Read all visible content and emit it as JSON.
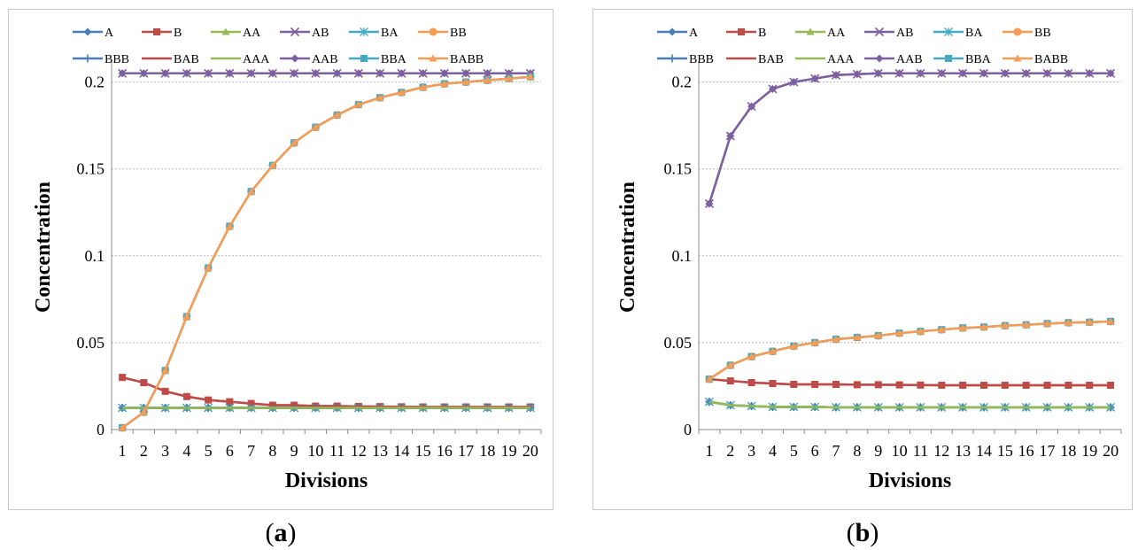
{
  "chart_data": [
    {
      "panel": "a",
      "type": "line",
      "caption": "a",
      "xlabel": "Divisions",
      "ylabel": "Concentration",
      "x": [
        1,
        2,
        3,
        4,
        5,
        6,
        7,
        8,
        9,
        10,
        11,
        12,
        13,
        14,
        15,
        16,
        17,
        18,
        19,
        20
      ],
      "ylim": [
        0,
        0.21
      ],
      "yticks": [
        0,
        0.05,
        0.1,
        0.15,
        0.2
      ],
      "ytick_labels": [
        "0",
        "0.05",
        "0.1",
        "0.15",
        "0.2"
      ],
      "grid": "horizontal dashed",
      "legend_position": "top",
      "series": [
        {
          "name": "A",
          "color": "#4a7ebb",
          "marker": "diamond",
          "values": [
            0.0125,
            0.0125,
            0.0125,
            0.0125,
            0.0125,
            0.0125,
            0.0125,
            0.0125,
            0.0125,
            0.0125,
            0.0125,
            0.0125,
            0.0125,
            0.0125,
            0.0125,
            0.0125,
            0.0125,
            0.0125,
            0.0125,
            0.0125
          ]
        },
        {
          "name": "B",
          "color": "#be4b48",
          "marker": "square",
          "values": [
            0.03,
            0.027,
            0.022,
            0.019,
            0.017,
            0.016,
            0.015,
            0.014,
            0.014,
            0.0135,
            0.0135,
            0.0133,
            0.0132,
            0.0131,
            0.013,
            0.013,
            0.013,
            0.013,
            0.013,
            0.013
          ]
        },
        {
          "name": "AA",
          "color": "#98b954",
          "marker": "triangle",
          "values": [
            0.0125,
            0.0125,
            0.0125,
            0.0125,
            0.0125,
            0.0125,
            0.0125,
            0.0125,
            0.0125,
            0.0125,
            0.0125,
            0.0125,
            0.0125,
            0.0125,
            0.0125,
            0.0125,
            0.0125,
            0.0125,
            0.0125,
            0.0125
          ]
        },
        {
          "name": "AB",
          "color": "#7d60a0",
          "marker": "x",
          "values": [
            0.205,
            0.205,
            0.205,
            0.205,
            0.205,
            0.205,
            0.205,
            0.205,
            0.205,
            0.205,
            0.205,
            0.205,
            0.205,
            0.205,
            0.205,
            0.205,
            0.205,
            0.205,
            0.205,
            0.205
          ]
        },
        {
          "name": "BA",
          "color": "#46aac5",
          "marker": "star",
          "values": [
            0.0125,
            0.0125,
            0.0125,
            0.0125,
            0.0125,
            0.0125,
            0.0125,
            0.0125,
            0.0125,
            0.0125,
            0.0125,
            0.0125,
            0.0125,
            0.0125,
            0.0125,
            0.0125,
            0.0125,
            0.0125,
            0.0125,
            0.0125
          ]
        },
        {
          "name": "BB",
          "color": "#f59d56",
          "marker": "circle",
          "values": [
            0.001,
            0.01,
            0.034,
            0.065,
            0.093,
            0.117,
            0.137,
            0.152,
            0.165,
            0.174,
            0.181,
            0.187,
            0.191,
            0.194,
            0.197,
            0.199,
            0.2,
            0.201,
            0.202,
            0.203
          ]
        },
        {
          "name": "BBB",
          "color": "#4a7ebb",
          "marker": "plus",
          "values": [
            0.0125,
            0.0125,
            0.0125,
            0.0125,
            0.0125,
            0.0125,
            0.0125,
            0.0125,
            0.0125,
            0.0125,
            0.0125,
            0.0125,
            0.0125,
            0.0125,
            0.0125,
            0.0125,
            0.0125,
            0.0125,
            0.0125,
            0.0125
          ]
        },
        {
          "name": "BAB",
          "color": "#be4b48",
          "marker": "none",
          "values": [
            0.03,
            0.027,
            0.022,
            0.019,
            0.017,
            0.016,
            0.015,
            0.014,
            0.014,
            0.0135,
            0.0135,
            0.0133,
            0.0132,
            0.0131,
            0.013,
            0.013,
            0.013,
            0.013,
            0.013,
            0.013
          ]
        },
        {
          "name": "AAA",
          "color": "#98b954",
          "marker": "none",
          "values": [
            0.0125,
            0.0125,
            0.0125,
            0.0125,
            0.0125,
            0.0125,
            0.0125,
            0.0125,
            0.0125,
            0.0125,
            0.0125,
            0.0125,
            0.0125,
            0.0125,
            0.0125,
            0.0125,
            0.0125,
            0.0125,
            0.0125,
            0.0125
          ]
        },
        {
          "name": "AAB",
          "color": "#7d60a0",
          "marker": "diamond",
          "values": [
            0.205,
            0.205,
            0.205,
            0.205,
            0.205,
            0.205,
            0.205,
            0.205,
            0.205,
            0.205,
            0.205,
            0.205,
            0.205,
            0.205,
            0.205,
            0.205,
            0.205,
            0.205,
            0.205,
            0.205
          ]
        },
        {
          "name": "BBA",
          "color": "#46aac5",
          "marker": "square",
          "values": [
            0.001,
            0.01,
            0.034,
            0.065,
            0.093,
            0.117,
            0.137,
            0.152,
            0.165,
            0.174,
            0.181,
            0.187,
            0.191,
            0.194,
            0.197,
            0.199,
            0.2,
            0.201,
            0.202,
            0.203
          ]
        },
        {
          "name": "BABB",
          "color": "#f59d56",
          "marker": "triangle",
          "values": [
            0.001,
            0.01,
            0.034,
            0.065,
            0.093,
            0.117,
            0.137,
            0.152,
            0.165,
            0.174,
            0.181,
            0.187,
            0.191,
            0.194,
            0.197,
            0.199,
            0.2,
            0.201,
            0.202,
            0.203
          ]
        }
      ]
    },
    {
      "panel": "b",
      "type": "line",
      "caption": "b",
      "xlabel": "Divisions",
      "ylabel": "Concentration",
      "x": [
        1,
        2,
        3,
        4,
        5,
        6,
        7,
        8,
        9,
        10,
        11,
        12,
        13,
        14,
        15,
        16,
        17,
        18,
        19,
        20
      ],
      "ylim": [
        0,
        0.21
      ],
      "yticks": [
        0,
        0.05,
        0.1,
        0.15,
        0.2
      ],
      "ytick_labels": [
        "0",
        "0.05",
        "0.1",
        "0.15",
        "0.2"
      ],
      "grid": "horizontal dashed",
      "legend_position": "top",
      "series": [
        {
          "name": "A",
          "color": "#4a7ebb",
          "marker": "diamond",
          "values": [
            0.016,
            0.014,
            0.0135,
            0.013,
            0.013,
            0.013,
            0.0128,
            0.0128,
            0.0128,
            0.0128,
            0.0128,
            0.0128,
            0.0128,
            0.0128,
            0.0128,
            0.0128,
            0.0128,
            0.0128,
            0.0128,
            0.0128
          ]
        },
        {
          "name": "B",
          "color": "#be4b48",
          "marker": "square",
          "values": [
            0.029,
            0.028,
            0.027,
            0.0265,
            0.026,
            0.026,
            0.026,
            0.0258,
            0.0258,
            0.0257,
            0.0256,
            0.0255,
            0.0255,
            0.0255,
            0.0255,
            0.0255,
            0.0255,
            0.0255,
            0.0255,
            0.0255
          ]
        },
        {
          "name": "AA",
          "color": "#98b954",
          "marker": "triangle",
          "values": [
            0.016,
            0.014,
            0.0135,
            0.013,
            0.013,
            0.013,
            0.0128,
            0.0128,
            0.0128,
            0.0128,
            0.0128,
            0.0128,
            0.0128,
            0.0128,
            0.0128,
            0.0128,
            0.0128,
            0.0128,
            0.0128,
            0.0128
          ]
        },
        {
          "name": "AB",
          "color": "#7d60a0",
          "marker": "x",
          "values": [
            0.13,
            0.169,
            0.186,
            0.196,
            0.2,
            0.202,
            0.204,
            0.2045,
            0.205,
            0.205,
            0.205,
            0.205,
            0.205,
            0.205,
            0.205,
            0.205,
            0.205,
            0.205,
            0.205,
            0.205
          ]
        },
        {
          "name": "BA",
          "color": "#46aac5",
          "marker": "star",
          "values": [
            0.016,
            0.014,
            0.0135,
            0.013,
            0.013,
            0.013,
            0.0128,
            0.0128,
            0.0128,
            0.0128,
            0.0128,
            0.0128,
            0.0128,
            0.0128,
            0.0128,
            0.0128,
            0.0128,
            0.0128,
            0.0128,
            0.0128
          ]
        },
        {
          "name": "BB",
          "color": "#f59d56",
          "marker": "circle",
          "values": [
            0.029,
            0.037,
            0.042,
            0.045,
            0.048,
            0.05,
            0.052,
            0.053,
            0.054,
            0.0555,
            0.0565,
            0.0575,
            0.0585,
            0.059,
            0.0598,
            0.0603,
            0.061,
            0.0615,
            0.0618,
            0.0622
          ]
        },
        {
          "name": "BBB",
          "color": "#4a7ebb",
          "marker": "plus",
          "values": [
            0.016,
            0.014,
            0.0135,
            0.013,
            0.013,
            0.013,
            0.0128,
            0.0128,
            0.0128,
            0.0128,
            0.0128,
            0.0128,
            0.0128,
            0.0128,
            0.0128,
            0.0128,
            0.0128,
            0.0128,
            0.0128,
            0.0128
          ]
        },
        {
          "name": "BAB",
          "color": "#be4b48",
          "marker": "none",
          "values": [
            0.029,
            0.028,
            0.027,
            0.0265,
            0.026,
            0.026,
            0.026,
            0.0258,
            0.0258,
            0.0257,
            0.0256,
            0.0255,
            0.0255,
            0.0255,
            0.0255,
            0.0255,
            0.0255,
            0.0255,
            0.0255,
            0.0255
          ]
        },
        {
          "name": "AAA",
          "color": "#98b954",
          "marker": "none",
          "values": [
            0.016,
            0.014,
            0.0135,
            0.013,
            0.013,
            0.013,
            0.0128,
            0.0128,
            0.0128,
            0.0128,
            0.0128,
            0.0128,
            0.0128,
            0.0128,
            0.0128,
            0.0128,
            0.0128,
            0.0128,
            0.0128,
            0.0128
          ]
        },
        {
          "name": "AAB",
          "color": "#7d60a0",
          "marker": "diamond",
          "values": [
            0.13,
            0.169,
            0.186,
            0.196,
            0.2,
            0.202,
            0.204,
            0.2045,
            0.205,
            0.205,
            0.205,
            0.205,
            0.205,
            0.205,
            0.205,
            0.205,
            0.205,
            0.205,
            0.205,
            0.205
          ]
        },
        {
          "name": "BBA",
          "color": "#46aac5",
          "marker": "square",
          "values": [
            0.029,
            0.037,
            0.042,
            0.045,
            0.048,
            0.05,
            0.052,
            0.053,
            0.054,
            0.0555,
            0.0565,
            0.0575,
            0.0585,
            0.059,
            0.0598,
            0.0603,
            0.061,
            0.0615,
            0.0618,
            0.0622
          ]
        },
        {
          "name": "BABB",
          "color": "#f59d56",
          "marker": "triangle",
          "values": [
            0.029,
            0.037,
            0.042,
            0.045,
            0.048,
            0.05,
            0.052,
            0.053,
            0.054,
            0.0555,
            0.0565,
            0.0575,
            0.0585,
            0.059,
            0.0598,
            0.0603,
            0.061,
            0.0615,
            0.0618,
            0.0622
          ]
        }
      ]
    }
  ]
}
